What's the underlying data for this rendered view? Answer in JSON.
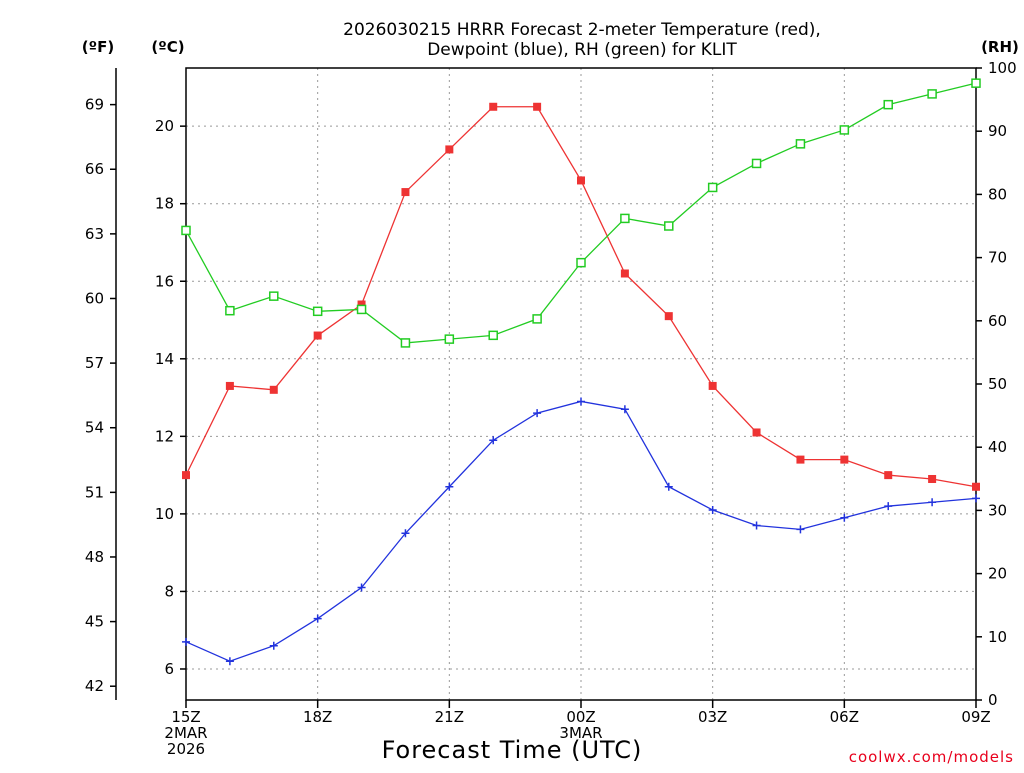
{
  "chart_data": {
    "type": "line",
    "title_line1": "2026030215 HRRR Forecast 2-meter Temperature (red),",
    "title_line2": "Dewpoint (blue), RH (green) for KLIT",
    "xlabel": "Forecast Time (UTC)",
    "credit": "coolwx.com/models",
    "units": {
      "fahrenheit": "(ºF)",
      "celsius": "(ºC)",
      "rh": "(RH)"
    },
    "x_hours": [
      0,
      1,
      2,
      3,
      4,
      5,
      6,
      7,
      8,
      9,
      10,
      11,
      12,
      13,
      14,
      15,
      16,
      17,
      18
    ],
    "x_ticks": [
      {
        "hour": 0,
        "lines": [
          "15Z",
          "2MAR",
          "2026"
        ]
      },
      {
        "hour": 3,
        "lines": [
          "18Z"
        ]
      },
      {
        "hour": 6,
        "lines": [
          "21Z"
        ]
      },
      {
        "hour": 9,
        "lines": [
          "00Z",
          "3MAR"
        ]
      },
      {
        "hour": 12,
        "lines": [
          "03Z"
        ]
      },
      {
        "hour": 15,
        "lines": [
          "06Z"
        ]
      },
      {
        "hour": 18,
        "lines": [
          "09Z"
        ]
      }
    ],
    "celsius_axis": {
      "min": 5.2,
      "max": 21.5,
      "ticks": [
        6,
        8,
        10,
        12,
        14,
        16,
        18,
        20
      ]
    },
    "fahrenheit_axis": {
      "ticks": [
        42,
        45,
        48,
        51,
        54,
        57,
        60,
        63,
        66,
        69
      ]
    },
    "rh_axis": {
      "min": 0,
      "max": 100,
      "ticks": [
        0,
        10,
        20,
        30,
        40,
        50,
        60,
        70,
        80,
        90,
        100
      ]
    },
    "series": [
      {
        "name": "Temperature",
        "color": "#ee3333",
        "axis": "celsius",
        "marker": "filled-square",
        "values": [
          11.0,
          13.3,
          13.2,
          14.6,
          15.4,
          18.3,
          19.4,
          20.5,
          20.5,
          18.6,
          16.2,
          15.1,
          13.3,
          12.1,
          11.4,
          11.4,
          11.0,
          10.9,
          10.7
        ]
      },
      {
        "name": "Dewpoint",
        "color": "#2233dd",
        "axis": "celsius",
        "marker": "plus",
        "values": [
          6.7,
          6.2,
          6.6,
          7.3,
          8.1,
          9.5,
          10.7,
          11.9,
          12.6,
          12.9,
          12.7,
          10.7,
          10.1,
          9.7,
          9.6,
          9.9,
          10.2,
          10.3,
          10.4
        ]
      },
      {
        "name": "RH",
        "color": "#22cc22",
        "axis": "rh",
        "marker": "open-square",
        "values": [
          74.3,
          61.6,
          63.9,
          61.5,
          61.8,
          56.5,
          57.1,
          57.7,
          60.3,
          69.2,
          76.2,
          75.0,
          81.1,
          84.9,
          88.0,
          90.2,
          94.2,
          95.9,
          97.6
        ]
      }
    ]
  }
}
